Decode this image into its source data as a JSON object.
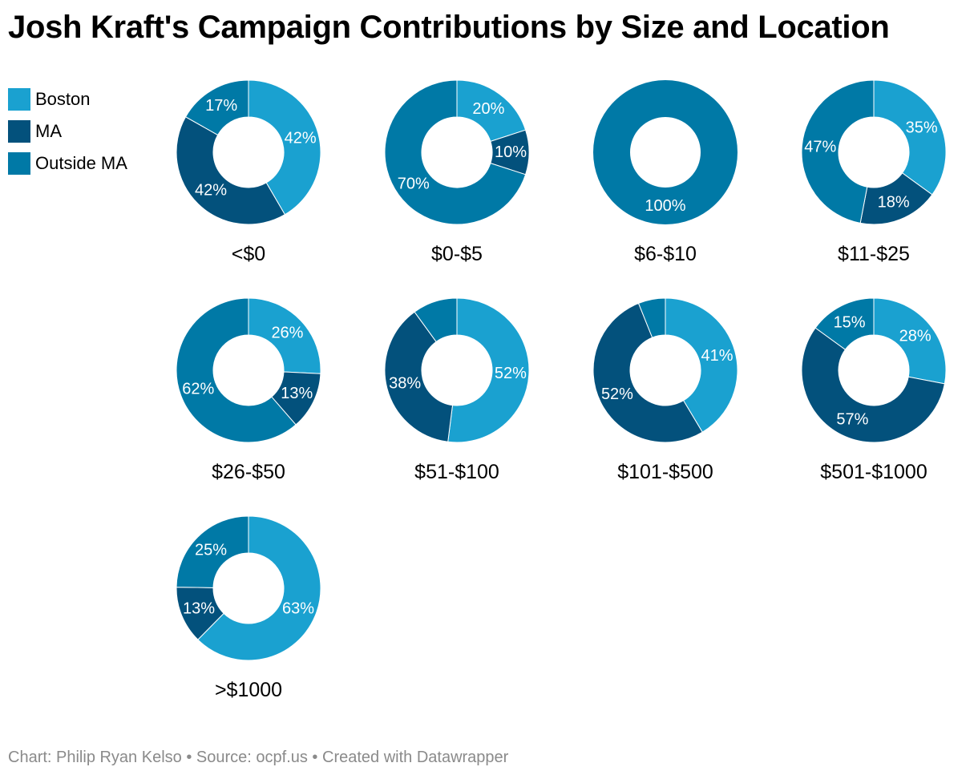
{
  "title": "Josh Kraft's Campaign Contributions by Size and Location",
  "legend": [
    {
      "label": "Boston",
      "color": "#1aa1d0"
    },
    {
      "label": "MA",
      "color": "#03517c"
    },
    {
      "label": "Outside MA",
      "color": "#0079a6"
    }
  ],
  "footer": {
    "chart": "Chart: Philip Ryan Kelso",
    "sep1": " • ",
    "source": "Source: ocpf.us",
    "sep2": " • ",
    "created": "Created with Datawrapper"
  },
  "chart_data": {
    "type": "pie",
    "variant": "donut",
    "series": [
      "Boston",
      "MA",
      "Outside MA"
    ],
    "colors": [
      "#1aa1d0",
      "#03517c",
      "#0079a6"
    ],
    "charts": [
      {
        "label": "<$0",
        "values": [
          42,
          42,
          17
        ],
        "labels": [
          "42%",
          "42%",
          "17%"
        ]
      },
      {
        "label": "$0-$5",
        "values": [
          20,
          10,
          70
        ],
        "labels": [
          "20%",
          "10%",
          "70%"
        ]
      },
      {
        "label": "$6-$10",
        "values": [
          0,
          0,
          100
        ],
        "labels": [
          "",
          "",
          "100%"
        ]
      },
      {
        "label": "$11-$25",
        "values": [
          35,
          18,
          47
        ],
        "labels": [
          "35%",
          "18%",
          "47%"
        ]
      },
      {
        "label": "$26-$50",
        "values": [
          26,
          13,
          62
        ],
        "labels": [
          "26%",
          "13%",
          "62%"
        ]
      },
      {
        "label": "$51-$100",
        "values": [
          52,
          38,
          10
        ],
        "labels": [
          "52%",
          "38%",
          ""
        ]
      },
      {
        "label": "$101-$500",
        "values": [
          41,
          52,
          6
        ],
        "labels": [
          "41%",
          "52%",
          ""
        ]
      },
      {
        "label": "$501-$1000",
        "values": [
          28,
          57,
          15
        ],
        "labels": [
          "28%",
          "57%",
          "15%"
        ]
      },
      {
        "label": ">$1000",
        "values": [
          63,
          13,
          25
        ],
        "labels": [
          "63%",
          "13%",
          "25%"
        ]
      }
    ]
  }
}
